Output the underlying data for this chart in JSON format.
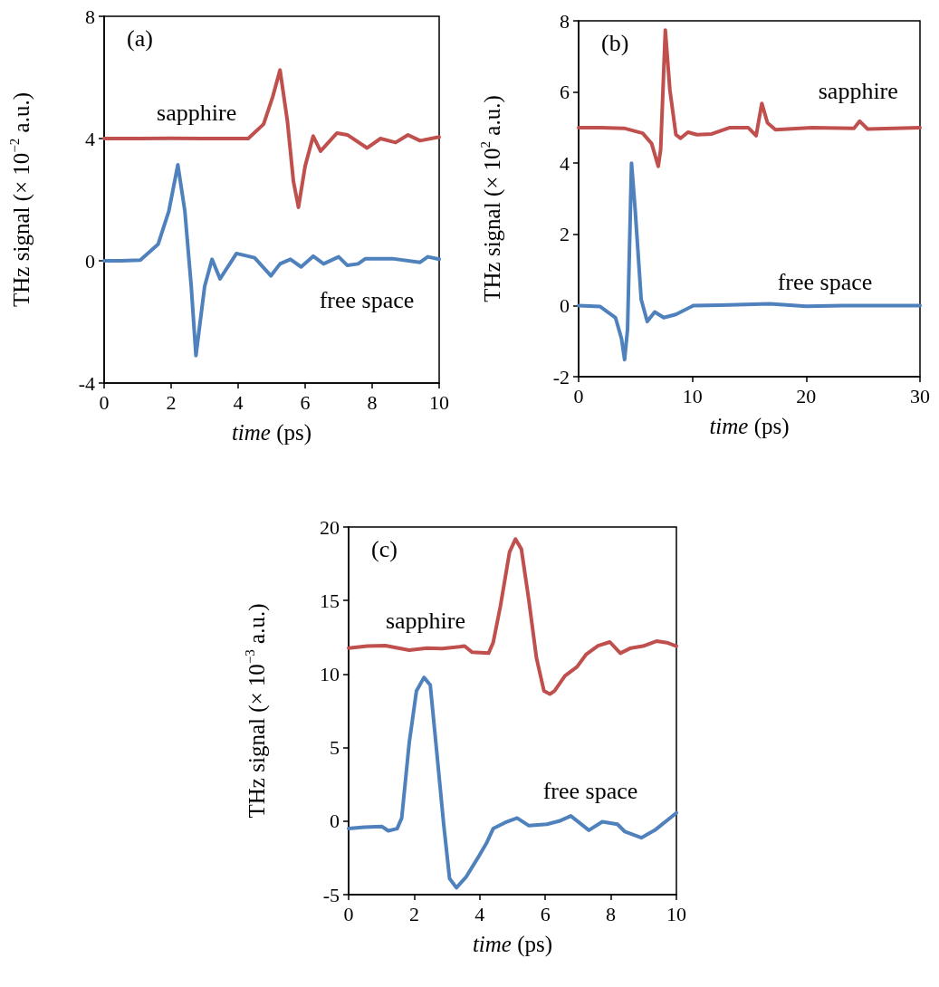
{
  "chart_data": [
    {
      "type": "line",
      "title": "(a)",
      "xlabel": "time (ps)",
      "ylabel": "THz signal (× 10$^{−2}$ a.u.)",
      "xlim": [
        0,
        10
      ],
      "xticks": [
        0,
        2,
        4,
        6,
        8,
        10
      ],
      "ylim": [
        -4,
        8
      ],
      "yticks": [
        -4,
        0,
        4,
        8
      ],
      "series": [
        {
          "name": "sapphire",
          "color": "#c0504d",
          "x": [
            0,
            1,
            2,
            3,
            4,
            4.3,
            4.76,
            5.03,
            5.25,
            5.47,
            5.65,
            5.8,
            6.0,
            6.24,
            6.46,
            6.95,
            7.26,
            7.85,
            8.25,
            8.7,
            9.07,
            9.43,
            10
          ],
          "values": [
            4,
            4,
            4.01,
            4,
            4,
            4.0,
            4.47,
            5.36,
            6.24,
            4.57,
            2.6,
            1.75,
            3.1,
            4.08,
            3.59,
            4.18,
            4.12,
            3.69,
            4.0,
            3.87,
            4.12,
            3.93,
            4.05
          ]
        },
        {
          "name": "free space",
          "color": "#4f81bd",
          "x": [
            0,
            0.5,
            1.08,
            1.61,
            1.93,
            2.2,
            2.41,
            2.6,
            2.74,
            3.0,
            3.22,
            3.46,
            3.95,
            4.49,
            4.98,
            5.25,
            5.56,
            5.88,
            6.24,
            6.55,
            7.0,
            7.26,
            7.58,
            7.8,
            8.6,
            9.43,
            9.66,
            10
          ],
          "values": [
            0,
            0,
            0.02,
            0.54,
            1.62,
            3.14,
            1.62,
            -0.84,
            -3.1,
            -0.84,
            0.05,
            -0.59,
            0.24,
            0.1,
            -0.49,
            -0.1,
            0.05,
            -0.2,
            0.15,
            -0.1,
            0.13,
            -0.15,
            -0.1,
            0.07,
            0.07,
            -0.05,
            0.13,
            0.05
          ]
        }
      ]
    },
    {
      "type": "line",
      "title": "(b)",
      "xlabel": "time (ps)",
      "ylabel": "THz signal (× 10$^{2}$ a.u.)",
      "xlim": [
        0,
        30
      ],
      "xticks": [
        0,
        10,
        20,
        30
      ],
      "ylim": [
        -2,
        8
      ],
      "yticks": [
        -2,
        0,
        2,
        4,
        6,
        8
      ],
      "series": [
        {
          "name": "sapphire",
          "color": "#c0504d",
          "x": [
            0,
            2,
            4,
            5.63,
            6.42,
            7.0,
            7.21,
            7.62,
            8.02,
            8.55,
            8.95,
            9.61,
            10.4,
            11.7,
            13.3,
            14.9,
            15.6,
            16.1,
            16.6,
            17.3,
            20.5,
            24.2,
            24.7,
            25.4,
            30
          ],
          "values": [
            5,
            5,
            4.98,
            4.84,
            4.55,
            3.91,
            4.38,
            7.74,
            6.06,
            4.8,
            4.7,
            4.87,
            4.8,
            4.82,
            5.0,
            5.0,
            4.77,
            5.68,
            5.13,
            4.94,
            5.0,
            4.98,
            5.18,
            4.96,
            5.0
          ]
        },
        {
          "name": "free space",
          "color": "#4f81bd",
          "x": [
            0,
            1.9,
            3.24,
            3.77,
            4.04,
            4.3,
            4.65,
            4.97,
            5.5,
            6.03,
            6.69,
            7.48,
            8.55,
            10.1,
            12.5,
            16.8,
            20,
            23.2,
            30
          ],
          "values": [
            0,
            -0.03,
            -0.34,
            -0.93,
            -1.52,
            -0.67,
            4.0,
            2.69,
            0.17,
            -0.45,
            -0.18,
            -0.34,
            -0.25,
            0,
            0.01,
            0.05,
            -0.02,
            0,
            0
          ]
        }
      ]
    },
    {
      "type": "line",
      "title": "(c)",
      "xlabel": "time (ps)",
      "ylabel": "THz signal (× 10$^{−3}$ a.u.)",
      "xlim": [
        0,
        10
      ],
      "xticks": [
        0,
        2,
        4,
        6,
        8,
        10
      ],
      "ylim": [
        -5,
        20
      ],
      "yticks": [
        -5,
        0,
        5,
        10,
        15,
        20
      ],
      "series": [
        {
          "name": "sapphire",
          "color": "#c0504d",
          "x": [
            0,
            0.57,
            1.12,
            1.85,
            2.39,
            2.85,
            3.54,
            3.77,
            4.27,
            4.41,
            4.63,
            4.91,
            5.09,
            5.27,
            5.5,
            5.73,
            5.96,
            6.14,
            6.28,
            6.6,
            6.97,
            7.24,
            7.61,
            7.97,
            8.29,
            8.61,
            8.98,
            9.39,
            9.71,
            10
          ],
          "values": [
            11.77,
            11.9,
            11.93,
            11.63,
            11.77,
            11.73,
            11.9,
            11.48,
            11.42,
            12.14,
            14.6,
            18.3,
            19.18,
            18.5,
            15.0,
            11.1,
            8.85,
            8.64,
            8.85,
            9.88,
            10.49,
            11.32,
            11.93,
            12.18,
            11.42,
            11.77,
            11.9,
            12.24,
            12.14,
            11.9
          ]
        },
        {
          "name": "free space",
          "color": "#4f81bd",
          "x": [
            0,
            0.48,
            1.02,
            1.21,
            1.48,
            1.62,
            1.85,
            2.07,
            2.3,
            2.49,
            2.67,
            2.9,
            3.08,
            3.29,
            3.58,
            3.95,
            4.22,
            4.41,
            4.77,
            5.14,
            5.5,
            6.05,
            6.42,
            6.78,
            7.33,
            7.74,
            8.2,
            8.43,
            8.93,
            9.34,
            10
          ],
          "values": [
            -0.51,
            -0.41,
            -0.37,
            -0.66,
            -0.51,
            0.21,
            5.35,
            8.85,
            9.77,
            9.26,
            5.14,
            -0.21,
            -3.91,
            -4.53,
            -3.81,
            -2.47,
            -1.44,
            -0.51,
            -0.1,
            0.21,
            -0.31,
            -0.21,
            0,
            0.35,
            -0.62,
            -0.04,
            -0.21,
            -0.72,
            -1.13,
            -0.62,
            0.56
          ]
        }
      ]
    }
  ]
}
